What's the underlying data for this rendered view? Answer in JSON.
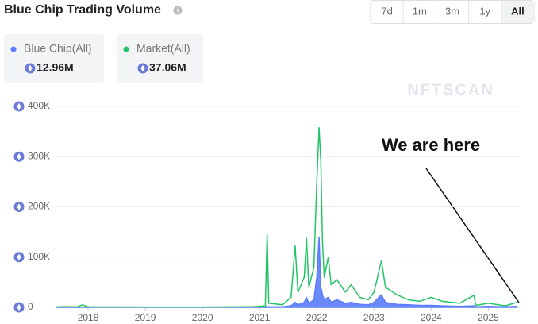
{
  "header": {
    "title": "Blue Chip Trading Volume",
    "filters": [
      "7d",
      "1m",
      "3m",
      "1y",
      "All"
    ],
    "active_filter": 4
  },
  "watermark": "NFTSCAN",
  "chart_data": {
    "type": "line",
    "annotation": "We are here",
    "x": [
      2017.45,
      2017.6,
      2017.8,
      2017.9,
      2018.0,
      2018.5,
      2019.0,
      2019.5,
      2020.0,
      2020.5,
      2020.9,
      2021.1,
      2021.13,
      2021.16,
      2021.4,
      2021.55,
      2021.62,
      2021.67,
      2021.78,
      2021.82,
      2021.86,
      2021.95,
      2022.0,
      2022.04,
      2022.07,
      2022.1,
      2022.13,
      2022.2,
      2022.25,
      2022.35,
      2022.5,
      2022.6,
      2022.75,
      2022.9,
      2023.0,
      2023.13,
      2023.2,
      2023.4,
      2023.6,
      2023.8,
      2024.0,
      2024.2,
      2024.5,
      2024.75,
      2024.78,
      2025.0,
      2025.3,
      2025.5
    ],
    "series": [
      {
        "name": "Blue Chip(All)",
        "total_label": "12.96M",
        "color": "#5b7cfa",
        "fill": true,
        "values": [
          0,
          0,
          0,
          500,
          0,
          0,
          0,
          0,
          0,
          0,
          0,
          500,
          2000,
          1000,
          1000,
          3000,
          10000,
          5000,
          10000,
          20000,
          8000,
          15000,
          60000,
          140000,
          40000,
          25000,
          15000,
          20000,
          10000,
          15000,
          8000,
          10000,
          6000,
          5000,
          10000,
          25000,
          10000,
          6000,
          5000,
          4000,
          4000,
          3000,
          2000,
          3000,
          1000,
          2000,
          1000,
          2000
        ]
      },
      {
        "name": "Market(All)",
        "total_label": "37.06M",
        "color": "#22c466",
        "fill": false,
        "values": [
          1000,
          1500,
          1000,
          5000,
          1000,
          800,
          600,
          700,
          700,
          900,
          1500,
          3000,
          145000,
          8000,
          5000,
          20000,
          122000,
          30000,
          60000,
          137000,
          40000,
          80000,
          248000,
          358000,
          290000,
          130000,
          60000,
          100000,
          45000,
          55000,
          30000,
          45000,
          20000,
          15000,
          30000,
          93000,
          40000,
          25000,
          15000,
          12000,
          20000,
          12000,
          8000,
          24000,
          4000,
          8000,
          3000,
          10000
        ]
      }
    ],
    "xlim": [
      2017.43,
      2025.55
    ],
    "xticks": [
      2018,
      2019,
      2020,
      2021,
      2022,
      2023,
      2024,
      2025
    ],
    "ylim": [
      0,
      400000
    ],
    "yticks": [
      0,
      {
        "value": 100000,
        "label": "100K"
      },
      {
        "value": 200000,
        "label": "200K"
      },
      {
        "value": 300000,
        "label": "300K"
      },
      {
        "value": 400000,
        "label": "400K"
      }
    ],
    "grid": true
  }
}
